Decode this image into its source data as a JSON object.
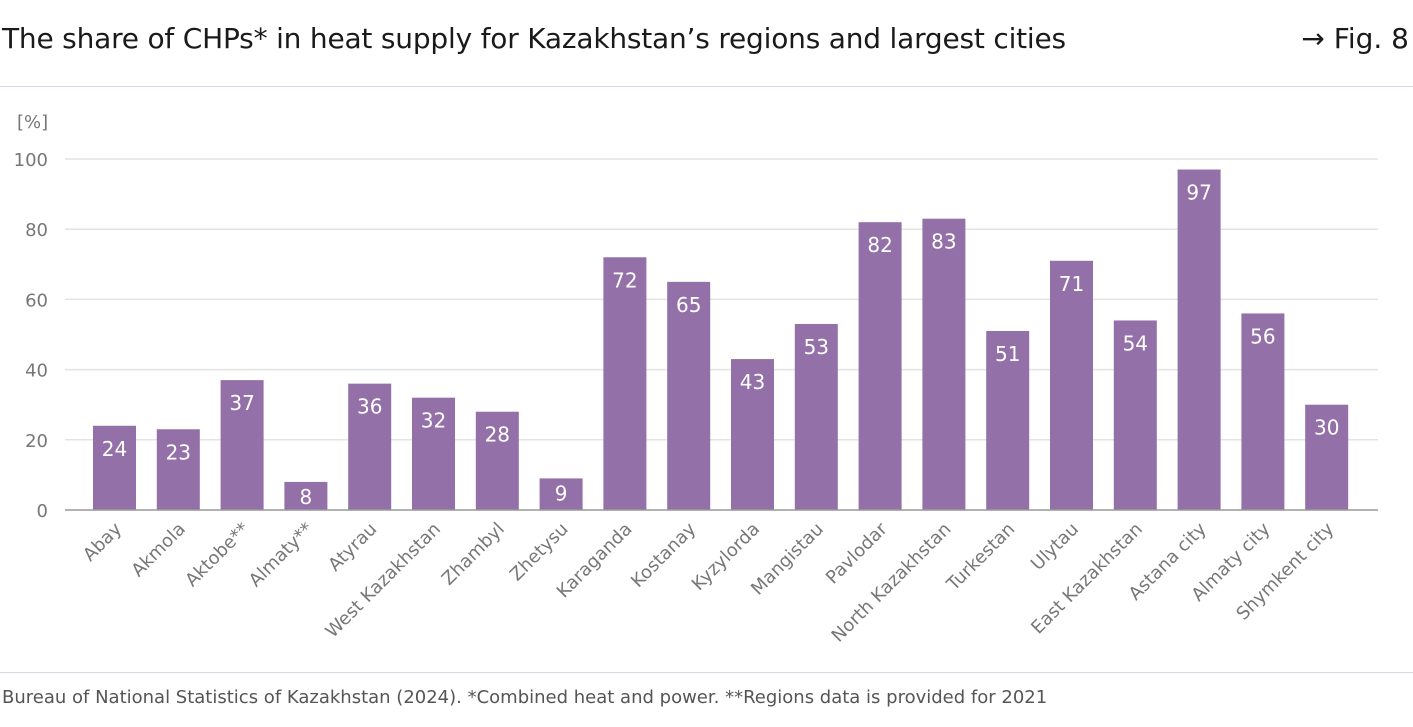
{
  "header": {
    "title": "The share of CHPs* in heat supply for Kazakhstan’s regions and largest cities",
    "fig_ref": "→ Fig. 8"
  },
  "footer": {
    "source": "Bureau of National Statistics of Kazakhstan (2024). *Combined heat and power. **Regions data is provided for 2021"
  },
  "colors": {
    "bar": "#9470a8",
    "grid": "#e3e3e3",
    "axis": "#999999",
    "label": "#777777"
  },
  "chart_data": {
    "type": "bar",
    "title": "The share of CHPs* in heat supply for Kazakhstan’s regions and largest cities",
    "ylabel": "[%]",
    "ylim": [
      0,
      100
    ],
    "yticks": [
      0,
      20,
      40,
      60,
      80,
      100
    ],
    "grid": true,
    "categories": [
      "Abay",
      "Akmola",
      "Aktobe**",
      "Almaty**",
      "Atyrau",
      "West Kazakhstan",
      "Zhambyl",
      "Zhetysu",
      "Karaganda",
      "Kostanay",
      "Kyzylorda",
      "Mangistau",
      "Pavlodar",
      "North Kazakhstan",
      "Turkestan",
      "Ulytau",
      "East Kazakhstan",
      "Astana city",
      "Almaty city",
      "Shymkent city"
    ],
    "values": [
      24,
      23,
      37,
      8,
      36,
      32,
      28,
      9,
      72,
      65,
      43,
      53,
      82,
      83,
      51,
      71,
      54,
      97,
      56,
      30
    ]
  }
}
